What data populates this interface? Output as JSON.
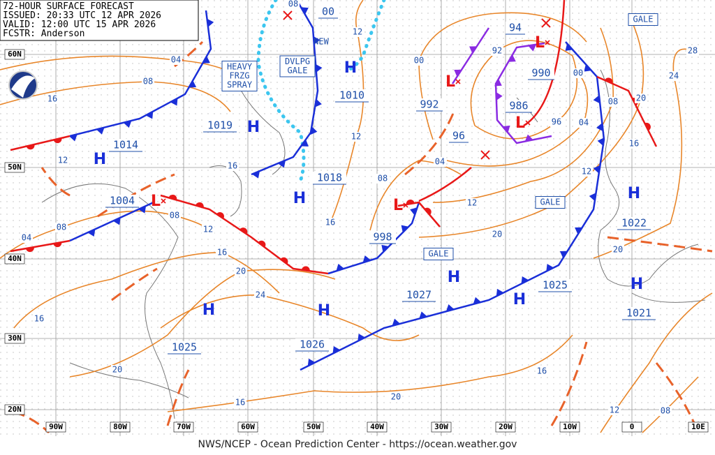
{
  "header": {
    "lines": [
      "72-HOUR SURFACE FORECAST",
      "ISSUED: 20:33 UTC 12 APR 2026",
      "VALID:  12:00 UTC 15 APR 2026",
      "FCSTR:  Anderson"
    ]
  },
  "footer": "NWS/NCEP - Ocean Prediction Center - https://ocean.weather.gov",
  "lat_labels": [
    "60N",
    "50N",
    "40N",
    "30N",
    "20N"
  ],
  "lon_labels": [
    "90W",
    "80W",
    "70W",
    "60W",
    "50W",
    "40W",
    "30W",
    "20W",
    "10W",
    "0",
    "10E"
  ],
  "pressure_centers": [
    "1014",
    "1004",
    "1019",
    "1010",
    "1018",
    "998",
    "992",
    "96",
    "986",
    "990",
    "94",
    "1027",
    "1026",
    "1025",
    "1025",
    "1022",
    "1021",
    "00"
  ],
  "isobar_labels": [
    "04",
    "08",
    "16",
    "12",
    "08",
    "04",
    "08",
    "12",
    "16",
    "20",
    "24",
    "16",
    "20",
    "16",
    "20",
    "16",
    "08",
    "12",
    "04",
    "00",
    "92",
    "96",
    "04",
    "00",
    "08",
    "16",
    "12",
    "12",
    "20",
    "20",
    "24",
    "28",
    "20",
    "16",
    "12",
    "08",
    "12",
    "08",
    "16"
  ],
  "highs": [
    "H",
    "H",
    "H",
    "H",
    "H",
    "H",
    "H",
    "H",
    "H",
    "H"
  ],
  "lows": [
    "L",
    "L",
    "L",
    "L",
    "L"
  ],
  "warnings": [
    {
      "lines": [
        "GALE"
      ]
    },
    {
      "lines": [
        "GALE"
      ]
    },
    {
      "lines": [
        "GALE"
      ]
    },
    {
      "lines": [
        "HEAVY",
        "FRZG",
        "SPRAY"
      ]
    },
    {
      "lines": [
        "DVLPG",
        "GALE"
      ]
    }
  ],
  "labels": [
    "NEW"
  ]
}
